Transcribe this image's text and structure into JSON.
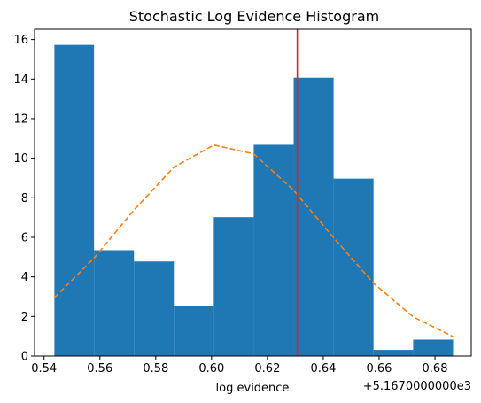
{
  "chart_data": {
    "type": "bar",
    "title": "Stochastic Log Evidence Histogram",
    "xlabel": "log evidence",
    "ylabel": "",
    "offset_label": "+5.1670000000e3",
    "xlim": [
      0.5366,
      0.693
    ],
    "ylim": [
      0,
      16.52
    ],
    "x_ticks": [
      0.54,
      0.56,
      0.58,
      0.6,
      0.62,
      0.64,
      0.66,
      0.68
    ],
    "x_tick_labels": [
      "0.54",
      "0.56",
      "0.58",
      "0.60",
      "0.62",
      "0.64",
      "0.66",
      "0.68"
    ],
    "y_ticks": [
      0,
      2,
      4,
      6,
      8,
      10,
      12,
      14,
      16
    ],
    "y_tick_labels": [
      "0",
      "2",
      "4",
      "6",
      "8",
      "10",
      "12",
      "14",
      "16"
    ],
    "bins": [
      {
        "start": 0.5437,
        "end": 0.5579,
        "value": 15.73
      },
      {
        "start": 0.5579,
        "end": 0.5722,
        "value": 5.35
      },
      {
        "start": 0.5722,
        "end": 0.5865,
        "value": 4.78
      },
      {
        "start": 0.5865,
        "end": 0.6008,
        "value": 2.55
      },
      {
        "start": 0.6008,
        "end": 0.6151,
        "value": 7.02
      },
      {
        "start": 0.6151,
        "end": 0.6294,
        "value": 10.68
      },
      {
        "start": 0.6294,
        "end": 0.6437,
        "value": 14.07
      },
      {
        "start": 0.6437,
        "end": 0.658,
        "value": 8.97
      },
      {
        "start": 0.658,
        "end": 0.6722,
        "value": 0.31
      },
      {
        "start": 0.6722,
        "end": 0.6865,
        "value": 0.83
      }
    ],
    "density_curve": {
      "x": [
        0.5437,
        0.5579,
        0.5722,
        0.5865,
        0.6008,
        0.6151,
        0.6294,
        0.6437,
        0.658,
        0.6722,
        0.6865
      ],
      "y": [
        2.95,
        4.95,
        7.38,
        9.55,
        10.67,
        10.22,
        8.38,
        5.98,
        3.68,
        1.98,
        0.98
      ]
    },
    "vline": {
      "x": 0.6307
    },
    "colors": {
      "bar": "#1f77b4",
      "curve": "#ff7f0e",
      "vline": "#d62728",
      "axis": "#000000"
    },
    "grid": false
  }
}
